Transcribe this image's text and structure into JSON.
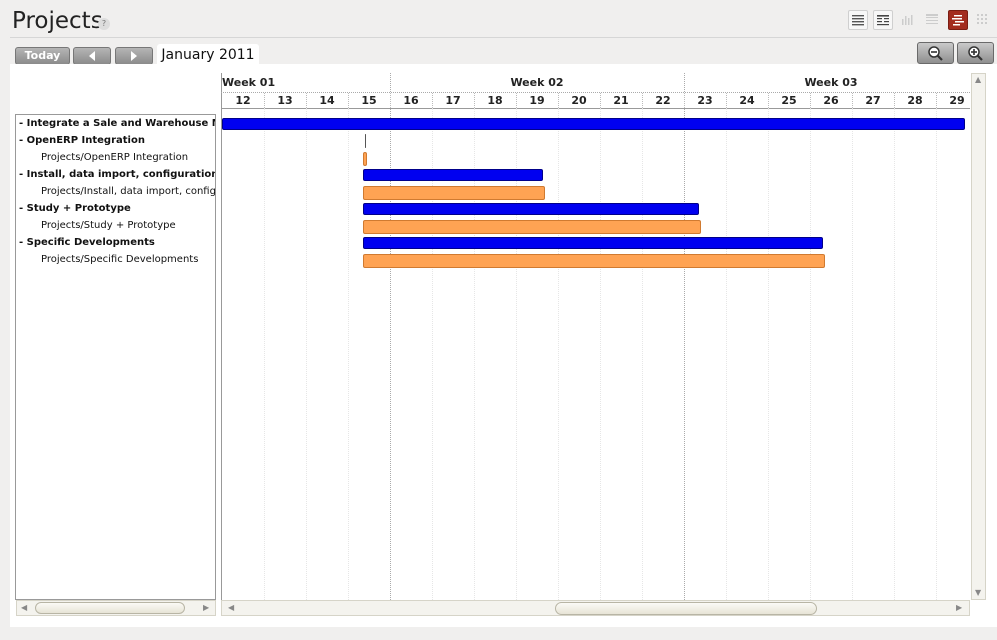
{
  "page": {
    "title": "Projects",
    "help": "?"
  },
  "nav": {
    "today_label": "Today",
    "period_label": "January 2011"
  },
  "view_buttons": [
    "list-view",
    "form-view",
    "graph-view",
    "calendar-view",
    "gantt-view",
    "diagram-view"
  ],
  "active_view": "gantt-view",
  "gantt": {
    "weeks": [
      "Week 01",
      "Week 02",
      "Week 03"
    ],
    "days": [
      "12",
      "13",
      "14",
      "15",
      "16",
      "17",
      "18",
      "19",
      "20",
      "21",
      "22",
      "23",
      "24",
      "25",
      "26",
      "27",
      "28",
      "29"
    ],
    "tasks": [
      {
        "label": "- Integrate a Sale and Warehouse Manag",
        "kind": "parent",
        "bar": "blue",
        "start": 0,
        "end": 17.7
      },
      {
        "label": "- OpenERP Integration",
        "kind": "parent",
        "bar": "mark",
        "start": 3.4,
        "end": 3.4
      },
      {
        "label": "Projects/OpenERP Integration",
        "kind": "child",
        "bar": "orange",
        "start": 3.35,
        "end": 3.45
      },
      {
        "label": "- Install, data import, configuration",
        "kind": "parent",
        "bar": "blue",
        "start": 3.35,
        "end": 7.65
      },
      {
        "label": "Projects/Install, data import, configurati",
        "kind": "child",
        "bar": "orange",
        "start": 3.35,
        "end": 7.7
      },
      {
        "label": "- Study + Prototype",
        "kind": "parent",
        "bar": "blue",
        "start": 3.35,
        "end": 11.35
      },
      {
        "label": "Projects/Study + Prototype",
        "kind": "child",
        "bar": "orange",
        "start": 3.35,
        "end": 11.4
      },
      {
        "label": "- Specific Developments",
        "kind": "parent",
        "bar": "blue",
        "start": 3.35,
        "end": 14.3
      },
      {
        "label": "Projects/Specific Developments",
        "kind": "child",
        "bar": "orange",
        "start": 3.35,
        "end": 14.35
      }
    ]
  },
  "colors": {
    "parent_bar": "#0000f0",
    "child_bar": "#ffa353",
    "active_view": "#a32c1f"
  }
}
